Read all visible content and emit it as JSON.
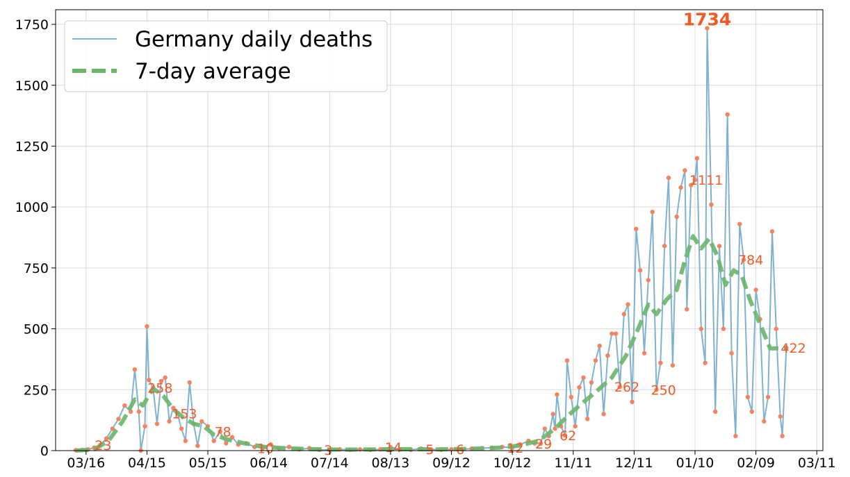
{
  "chart_data": {
    "type": "line",
    "title": "",
    "xlabel": "",
    "ylabel": "",
    "ylim": [
      0,
      1810
    ],
    "xlim": [
      "2020-03-01",
      "2021-03-14"
    ],
    "x_ticks": [
      {
        "date": "2020-03-16",
        "label": "03/16"
      },
      {
        "date": "2020-04-15",
        "label": "04/15"
      },
      {
        "date": "2020-05-15",
        "label": "05/15"
      },
      {
        "date": "2020-06-14",
        "label": "06/14"
      },
      {
        "date": "2020-07-14",
        "label": "07/14"
      },
      {
        "date": "2020-08-13",
        "label": "08/13"
      },
      {
        "date": "2020-09-12",
        "label": "09/12"
      },
      {
        "date": "2020-10-12",
        "label": "10/12"
      },
      {
        "date": "2020-11-11",
        "label": "11/11"
      },
      {
        "date": "2020-12-11",
        "label": "12/11"
      },
      {
        "date": "2021-01-10",
        "label": "01/10"
      },
      {
        "date": "2021-02-09",
        "label": "02/09"
      },
      {
        "date": "2021-03-11",
        "label": "03/11"
      }
    ],
    "y_ticks": [
      0,
      250,
      500,
      750,
      1000,
      1250,
      1500,
      1750
    ],
    "grid": true,
    "legend_position": "top-left",
    "series": [
      {
        "name": "Germany daily deaths",
        "color": "#7fb2d0",
        "marker_color": "#f4845f",
        "points": [
          [
            "2020-03-11",
            2
          ],
          [
            "2020-03-14",
            3
          ],
          [
            "2020-03-17",
            5
          ],
          [
            "2020-03-20",
            12
          ],
          [
            "2020-03-23",
            23
          ],
          [
            "2020-03-26",
            50
          ],
          [
            "2020-03-29",
            90
          ],
          [
            "2020-04-01",
            130
          ],
          [
            "2020-04-04",
            185
          ],
          [
            "2020-04-07",
            160
          ],
          [
            "2020-04-09",
            333
          ],
          [
            "2020-04-11",
            160
          ],
          [
            "2020-04-12",
            0
          ],
          [
            "2020-04-14",
            100
          ],
          [
            "2020-04-15",
            510
          ],
          [
            "2020-04-16",
            290
          ],
          [
            "2020-04-18",
            258
          ],
          [
            "2020-04-20",
            110
          ],
          [
            "2020-04-22",
            285
          ],
          [
            "2020-04-24",
            300
          ],
          [
            "2020-04-26",
            120
          ],
          [
            "2020-04-28",
            175
          ],
          [
            "2020-04-30",
            153
          ],
          [
            "2020-05-02",
            90
          ],
          [
            "2020-05-04",
            40
          ],
          [
            "2020-05-06",
            280
          ],
          [
            "2020-05-08",
            110
          ],
          [
            "2020-05-10",
            20
          ],
          [
            "2020-05-12",
            120
          ],
          [
            "2020-05-15",
            100
          ],
          [
            "2020-05-18",
            40
          ],
          [
            "2020-05-21",
            78
          ],
          [
            "2020-05-24",
            30
          ],
          [
            "2020-05-27",
            55
          ],
          [
            "2020-05-30",
            25
          ],
          [
            "2020-06-03",
            30
          ],
          [
            "2020-06-07",
            15
          ],
          [
            "2020-06-11",
            10
          ],
          [
            "2020-06-15",
            25
          ],
          [
            "2020-06-19",
            10
          ],
          [
            "2020-06-24",
            15
          ],
          [
            "2020-06-29",
            5
          ],
          [
            "2020-07-04",
            10
          ],
          [
            "2020-07-09",
            3
          ],
          [
            "2020-07-14",
            3
          ],
          [
            "2020-07-19",
            5
          ],
          [
            "2020-07-24",
            3
          ],
          [
            "2020-07-29",
            5
          ],
          [
            "2020-08-03",
            3
          ],
          [
            "2020-08-08",
            5
          ],
          [
            "2020-08-13",
            14
          ],
          [
            "2020-08-18",
            5
          ],
          [
            "2020-08-23",
            3
          ],
          [
            "2020-08-28",
            8
          ],
          [
            "2020-09-02",
            5
          ],
          [
            "2020-09-07",
            3
          ],
          [
            "2020-09-12",
            5
          ],
          [
            "2020-09-17",
            6
          ],
          [
            "2020-09-22",
            8
          ],
          [
            "2020-09-27",
            10
          ],
          [
            "2020-10-02",
            12
          ],
          [
            "2020-10-07",
            15
          ],
          [
            "2020-10-12",
            12
          ],
          [
            "2020-10-16",
            25
          ],
          [
            "2020-10-20",
            40
          ],
          [
            "2020-10-23",
            30
          ],
          [
            "2020-10-26",
            29
          ],
          [
            "2020-10-28",
            90
          ],
          [
            "2020-10-30",
            60
          ],
          [
            "2020-11-01",
            150
          ],
          [
            "2020-11-02",
            90
          ],
          [
            "2020-11-03",
            230
          ],
          [
            "2020-11-05",
            100
          ],
          [
            "2020-11-07",
            62
          ],
          [
            "2020-11-08",
            370
          ],
          [
            "2020-11-10",
            220
          ],
          [
            "2020-11-12",
            100
          ],
          [
            "2020-11-14",
            260
          ],
          [
            "2020-11-16",
            300
          ],
          [
            "2020-11-18",
            130
          ],
          [
            "2020-11-20",
            280
          ],
          [
            "2020-11-22",
            370
          ],
          [
            "2020-11-24",
            430
          ],
          [
            "2020-11-26",
            150
          ],
          [
            "2020-11-28",
            390
          ],
          [
            "2020-11-30",
            480
          ],
          [
            "2020-12-02",
            480
          ],
          [
            "2020-12-04",
            262
          ],
          [
            "2020-12-06",
            560
          ],
          [
            "2020-12-08",
            600
          ],
          [
            "2020-12-10",
            200
          ],
          [
            "2020-12-12",
            910
          ],
          [
            "2020-12-14",
            740
          ],
          [
            "2020-12-16",
            400
          ],
          [
            "2020-12-18",
            700
          ],
          [
            "2020-12-20",
            980
          ],
          [
            "2020-12-22",
            250
          ],
          [
            "2020-12-24",
            360
          ],
          [
            "2020-12-26",
            840
          ],
          [
            "2020-12-28",
            1120
          ],
          [
            "2020-12-30",
            350
          ],
          [
            "2021-01-01",
            960
          ],
          [
            "2021-01-03",
            1080
          ],
          [
            "2021-01-05",
            1150
          ],
          [
            "2021-01-06",
            580
          ],
          [
            "2021-01-08",
            1090
          ],
          [
            "2021-01-10",
            1111
          ],
          [
            "2021-01-11",
            1200
          ],
          [
            "2021-01-13",
            500
          ],
          [
            "2021-01-15",
            360
          ],
          [
            "2021-01-16",
            1734
          ],
          [
            "2021-01-18",
            1010
          ],
          [
            "2021-01-20",
            160
          ],
          [
            "2021-01-22",
            840
          ],
          [
            "2021-01-24",
            500
          ],
          [
            "2021-01-26",
            1380
          ],
          [
            "2021-01-28",
            400
          ],
          [
            "2021-01-30",
            60
          ],
          [
            "2021-02-01",
            930
          ],
          [
            "2021-02-03",
            784
          ],
          [
            "2021-02-05",
            220
          ],
          [
            "2021-02-07",
            160
          ],
          [
            "2021-02-09",
            660
          ],
          [
            "2021-02-11",
            540
          ],
          [
            "2021-02-13",
            120
          ],
          [
            "2021-02-15",
            220
          ],
          [
            "2021-02-17",
            900
          ],
          [
            "2021-02-19",
            500
          ],
          [
            "2021-02-21",
            140
          ],
          [
            "2021-02-22",
            60
          ],
          [
            "2021-02-24",
            422
          ]
        ]
      },
      {
        "name": "7-day average",
        "color": "#6ab56a",
        "points": [
          [
            "2020-03-11",
            0
          ],
          [
            "2020-03-20",
            5
          ],
          [
            "2020-03-27",
            40
          ],
          [
            "2020-04-03",
            120
          ],
          [
            "2020-04-09",
            210
          ],
          [
            "2020-04-13",
            185
          ],
          [
            "2020-04-18",
            255
          ],
          [
            "2020-04-23",
            225
          ],
          [
            "2020-04-28",
            170
          ],
          [
            "2020-05-03",
            135
          ],
          [
            "2020-05-08",
            110
          ],
          [
            "2020-05-13",
            100
          ],
          [
            "2020-05-18",
            65
          ],
          [
            "2020-05-25",
            45
          ],
          [
            "2020-06-02",
            30
          ],
          [
            "2020-06-12",
            15
          ],
          [
            "2020-06-22",
            10
          ],
          [
            "2020-07-05",
            6
          ],
          [
            "2020-07-20",
            4
          ],
          [
            "2020-08-05",
            5
          ],
          [
            "2020-08-20",
            6
          ],
          [
            "2020-09-05",
            5
          ],
          [
            "2020-09-20",
            7
          ],
          [
            "2020-10-05",
            12
          ],
          [
            "2020-10-15",
            20
          ],
          [
            "2020-10-25",
            40
          ],
          [
            "2020-11-02",
            90
          ],
          [
            "2020-11-08",
            140
          ],
          [
            "2020-11-14",
            185
          ],
          [
            "2020-11-22",
            240
          ],
          [
            "2020-11-30",
            300
          ],
          [
            "2020-12-07",
            390
          ],
          [
            "2020-12-13",
            500
          ],
          [
            "2020-12-18",
            600
          ],
          [
            "2020-12-22",
            560
          ],
          [
            "2020-12-27",
            620
          ],
          [
            "2021-01-01",
            660
          ],
          [
            "2021-01-05",
            780
          ],
          [
            "2021-01-09",
            880
          ],
          [
            "2021-01-13",
            830
          ],
          [
            "2021-01-17",
            870
          ],
          [
            "2021-01-21",
            800
          ],
          [
            "2021-01-25",
            680
          ],
          [
            "2021-01-29",
            740
          ],
          [
            "2021-02-02",
            720
          ],
          [
            "2021-02-06",
            620
          ],
          [
            "2021-02-11",
            520
          ],
          [
            "2021-02-16",
            420
          ],
          [
            "2021-02-21",
            420
          ],
          [
            "2021-02-24",
            422
          ]
        ]
      }
    ],
    "annotations": [
      {
        "date": "2020-03-23",
        "value": 23,
        "text": "23",
        "bold": false
      },
      {
        "date": "2020-04-18",
        "value": 258,
        "text": "258",
        "bold": false
      },
      {
        "date": "2020-04-30",
        "value": 153,
        "text": "153",
        "bold": false
      },
      {
        "date": "2020-05-21",
        "value": 78,
        "text": "78",
        "bold": false
      },
      {
        "date": "2020-06-11",
        "value": 10,
        "text": "10",
        "bold": false
      },
      {
        "date": "2020-07-14",
        "value": 3,
        "text": "3",
        "bold": false
      },
      {
        "date": "2020-08-13",
        "value": 14,
        "text": "14",
        "bold": false
      },
      {
        "date": "2020-09-02",
        "value": 5,
        "text": "5",
        "bold": false
      },
      {
        "date": "2020-09-17",
        "value": 6,
        "text": "6",
        "bold": false
      },
      {
        "date": "2020-10-12",
        "value": 12,
        "text": "12",
        "bold": false
      },
      {
        "date": "2020-10-26",
        "value": 29,
        "text": "29",
        "bold": false
      },
      {
        "date": "2020-11-07",
        "value": 62,
        "text": "62",
        "bold": false
      },
      {
        "date": "2020-12-04",
        "value": 262,
        "text": "262",
        "bold": false
      },
      {
        "date": "2020-12-22",
        "value": 250,
        "text": "250",
        "bold": false
      },
      {
        "date": "2021-01-10",
        "value": 1111,
        "text": "1111",
        "bold": false
      },
      {
        "date": "2021-01-16",
        "value": 1734,
        "text": "1734",
        "bold": true
      },
      {
        "date": "2021-02-03",
        "value": 784,
        "text": "784",
        "bold": false
      },
      {
        "date": "2021-02-24",
        "value": 422,
        "text": "422",
        "bold": false
      }
    ]
  }
}
